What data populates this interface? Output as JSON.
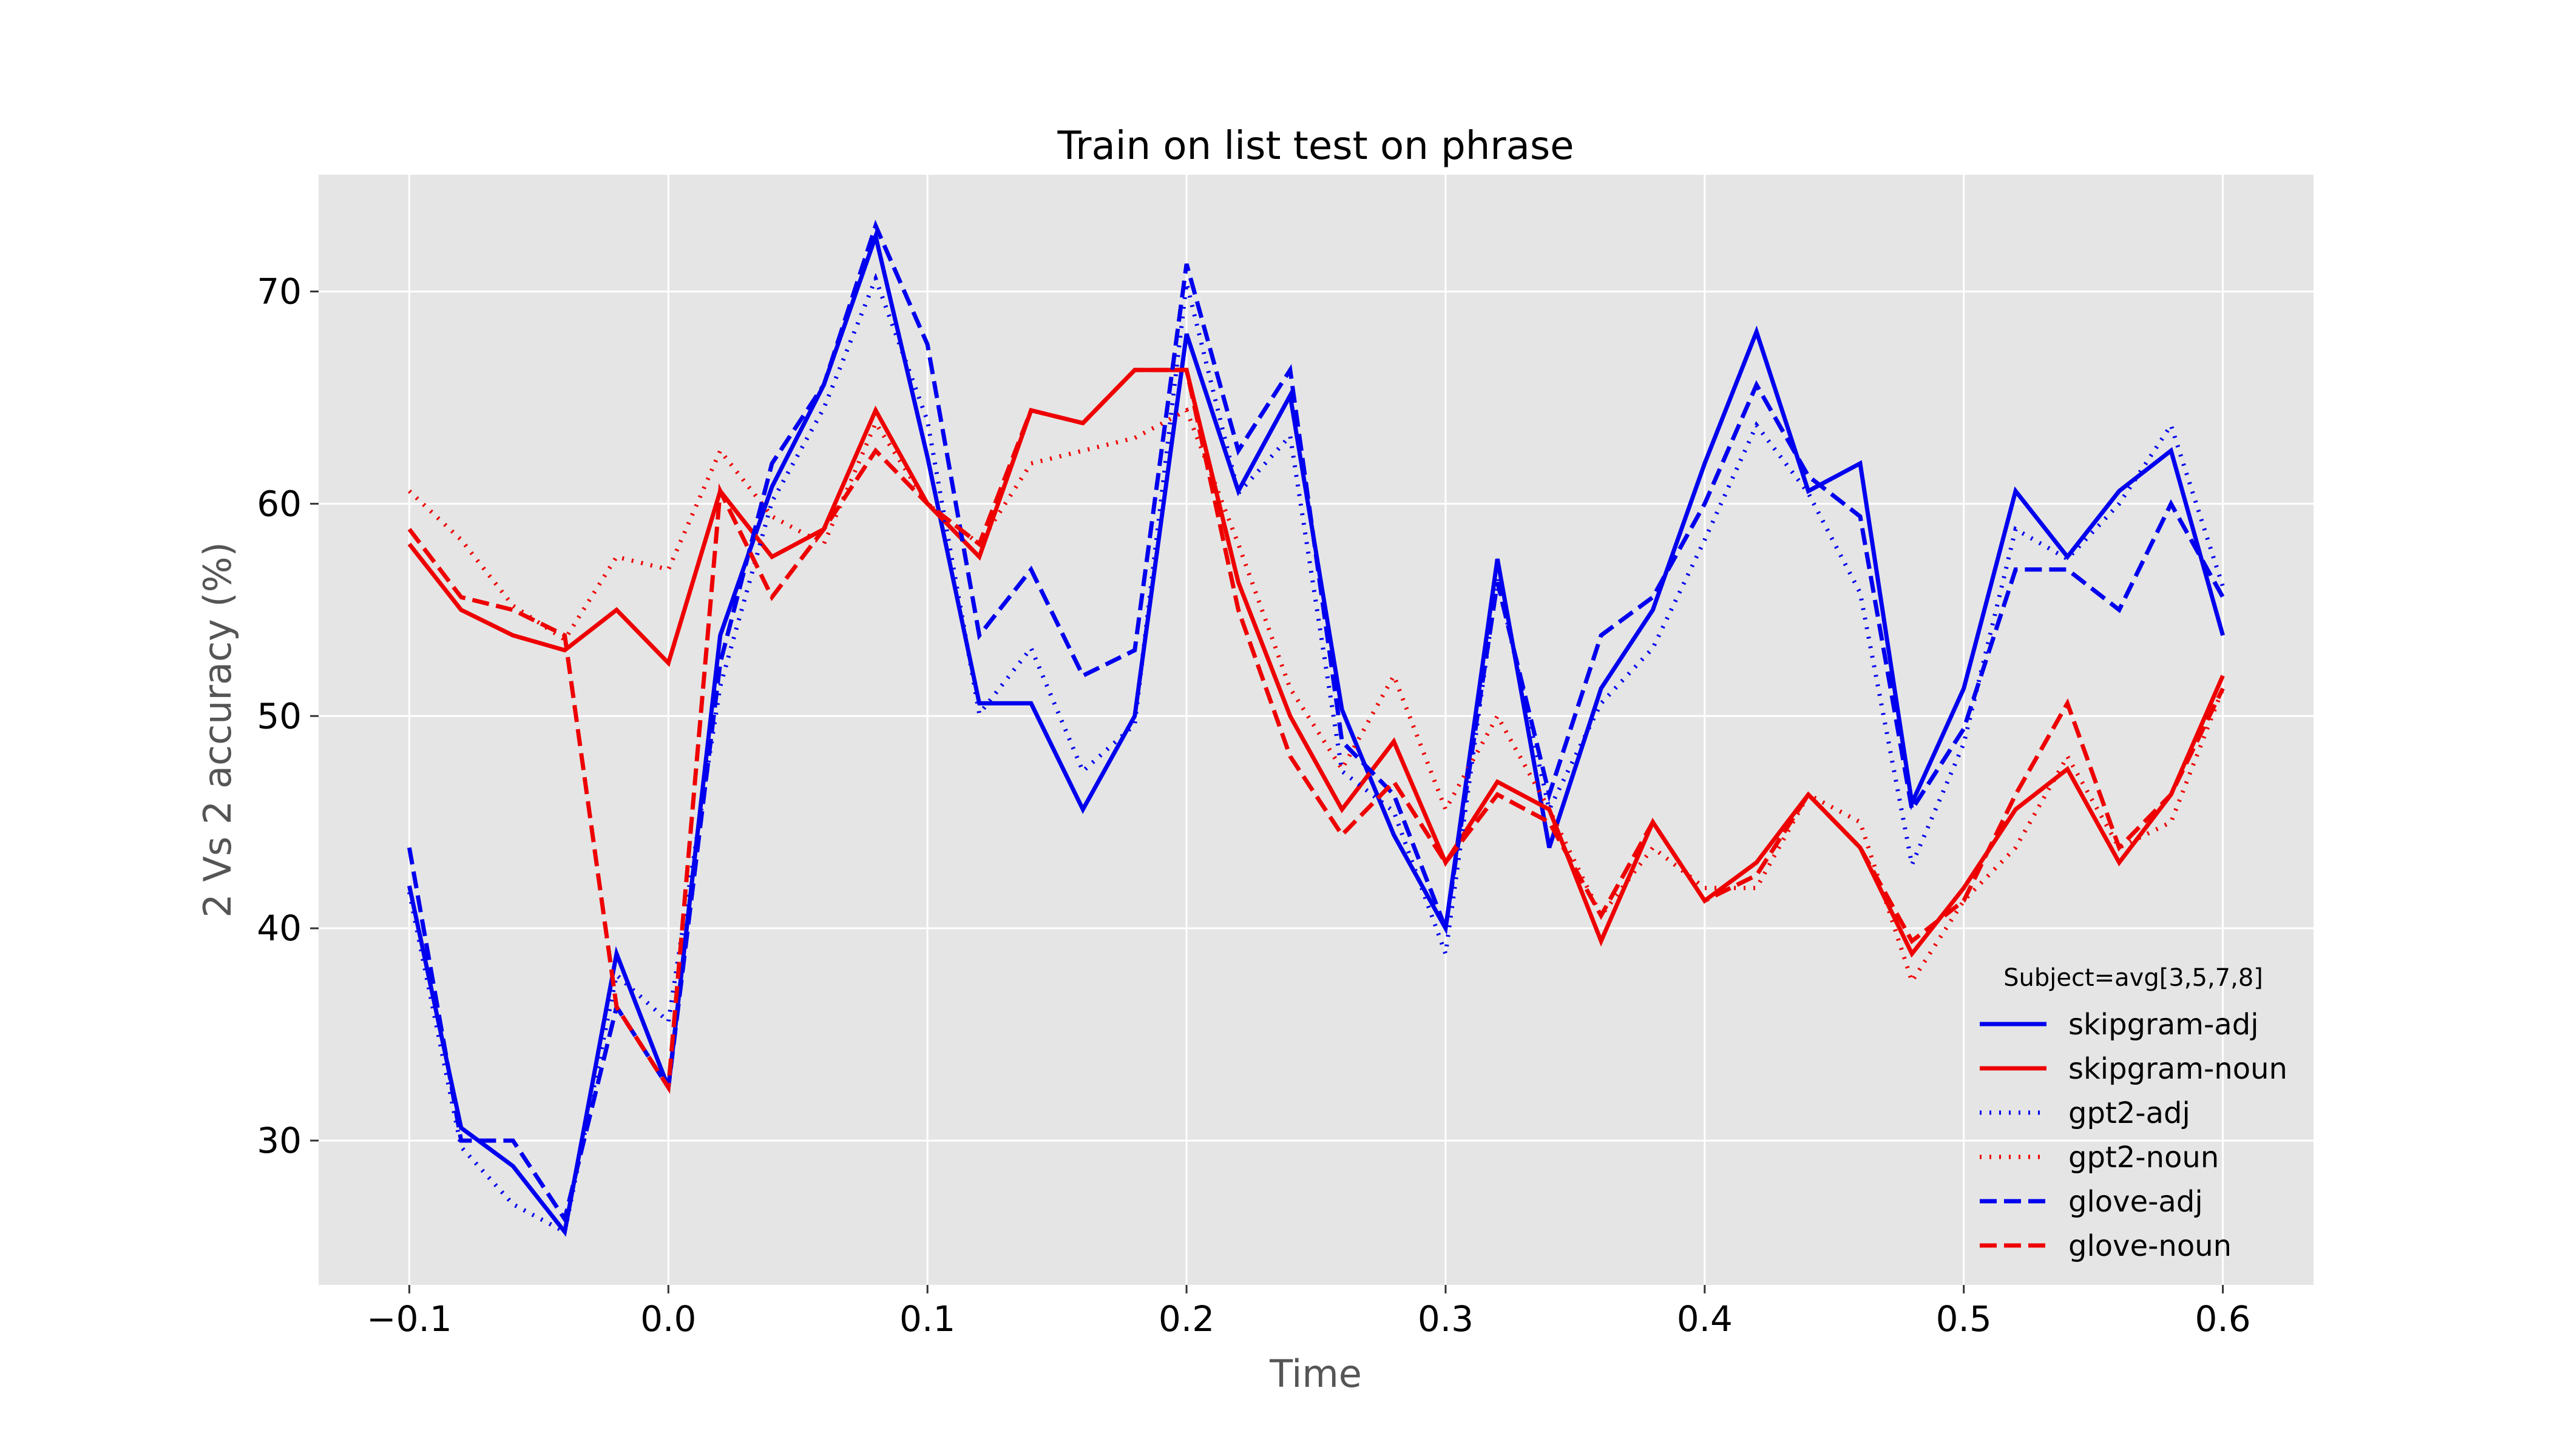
{
  "chart_data": {
    "type": "line",
    "title": "Train on list test on phrase",
    "xlabel": "Time",
    "ylabel": "2 Vs 2 accuracy (%)",
    "xlim": [
      -0.135,
      0.635
    ],
    "ylim": [
      23.2,
      75.5
    ],
    "xticks": [
      -0.1,
      0.0,
      0.1,
      0.2,
      0.3,
      0.4,
      0.5,
      0.6
    ],
    "xtick_labels": [
      "−0.1",
      "0.0",
      "0.1",
      "0.2",
      "0.3",
      "0.4",
      "0.5",
      "0.6"
    ],
    "yticks": [
      30,
      40,
      50,
      60,
      70
    ],
    "ytick_labels": [
      "30",
      "40",
      "50",
      "60",
      "70"
    ],
    "grid": true,
    "legend": {
      "title": "Subject=avg[3,5,7,8]",
      "placement": "lower-right"
    },
    "x": [
      -0.1,
      -0.08,
      -0.06,
      -0.04,
      -0.02,
      0.0,
      0.02,
      0.04,
      0.06,
      0.08,
      0.1,
      0.12,
      0.14,
      0.16,
      0.18,
      0.2,
      0.22,
      0.24,
      0.26,
      0.28,
      0.3,
      0.32,
      0.34,
      0.36,
      0.38,
      0.4,
      0.42,
      0.44,
      0.46,
      0.48,
      0.5,
      0.52,
      0.54,
      0.56,
      0.58,
      0.6
    ],
    "series": [
      {
        "name": "skipgram-adj",
        "color": "#0000ee",
        "dash": "solid",
        "values": [
          42.0,
          30.6,
          28.8,
          25.7,
          38.8,
          32.5,
          53.8,
          60.8,
          65.6,
          72.6,
          62.2,
          50.6,
          50.6,
          45.6,
          50.0,
          68.0,
          60.6,
          65.1,
          50.3,
          44.4,
          40.0,
          57.4,
          43.8,
          51.3,
          55.0,
          61.9,
          68.1,
          60.6,
          61.9,
          45.9,
          51.3,
          60.6,
          57.5,
          60.6,
          62.5,
          53.8
        ]
      },
      {
        "name": "skipgram-noun",
        "color": "#ee0000",
        "dash": "solid",
        "values": [
          58.1,
          55.0,
          53.8,
          53.1,
          55.0,
          52.5,
          60.6,
          57.5,
          58.8,
          64.4,
          60.0,
          57.5,
          64.4,
          63.8,
          66.3,
          66.3,
          56.3,
          50.0,
          45.6,
          48.8,
          43.1,
          46.9,
          45.6,
          39.4,
          45.0,
          41.3,
          43.1,
          46.3,
          43.8,
          38.8,
          41.9,
          45.6,
          47.5,
          43.1,
          46.3,
          51.9
        ]
      },
      {
        "name": "gpt2-adj",
        "color": "#0000ee",
        "dash": "dotted",
        "values": [
          41.7,
          29.7,
          27.0,
          25.7,
          37.8,
          35.6,
          51.4,
          60.1,
          64.5,
          70.6,
          63.9,
          50.1,
          53.2,
          47.4,
          49.6,
          70.4,
          60.5,
          63.2,
          47.4,
          45.5,
          38.8,
          56.5,
          45.6,
          50.6,
          53.2,
          58.3,
          63.7,
          60.5,
          55.8,
          43.0,
          48.7,
          58.8,
          57.4,
          60.0,
          63.7,
          56.1
        ]
      },
      {
        "name": "gpt2-noun",
        "color": "#ee0000",
        "dash": "dotted",
        "values": [
          60.6,
          58.3,
          55.2,
          53.6,
          57.5,
          56.9,
          62.5,
          59.4,
          58.1,
          63.8,
          60.0,
          58.1,
          61.9,
          62.5,
          63.1,
          64.4,
          58.1,
          51.3,
          47.5,
          51.9,
          45.6,
          50.0,
          45.6,
          40.6,
          43.8,
          41.9,
          41.9,
          46.3,
          45.0,
          37.5,
          41.3,
          43.8,
          48.1,
          43.8,
          45.0,
          51.3
        ]
      },
      {
        "name": "glove-adj",
        "color": "#0000ee",
        "dash": "dashed",
        "values": [
          43.8,
          30.0,
          30.0,
          26.3,
          36.3,
          32.5,
          52.5,
          61.9,
          65.6,
          73.1,
          67.5,
          53.8,
          56.9,
          51.9,
          53.1,
          71.3,
          62.5,
          66.3,
          48.8,
          46.3,
          40.0,
          56.3,
          46.3,
          53.8,
          55.6,
          60.0,
          65.6,
          61.3,
          59.4,
          45.6,
          49.4,
          56.9,
          56.9,
          55.0,
          60.0,
          55.6
        ]
      },
      {
        "name": "glove-noun",
        "color": "#ee0000",
        "dash": "dashed",
        "values": [
          58.8,
          55.6,
          55.0,
          53.8,
          36.3,
          32.5,
          60.6,
          55.6,
          58.8,
          62.5,
          60.0,
          58.1,
          64.4,
          63.8,
          66.3,
          66.3,
          55.0,
          48.1,
          44.4,
          46.9,
          43.1,
          46.3,
          45.0,
          40.6,
          45.0,
          41.3,
          42.5,
          46.3,
          43.8,
          39.4,
          41.3,
          46.3,
          50.6,
          43.8,
          46.3,
          51.3
        ]
      }
    ]
  }
}
